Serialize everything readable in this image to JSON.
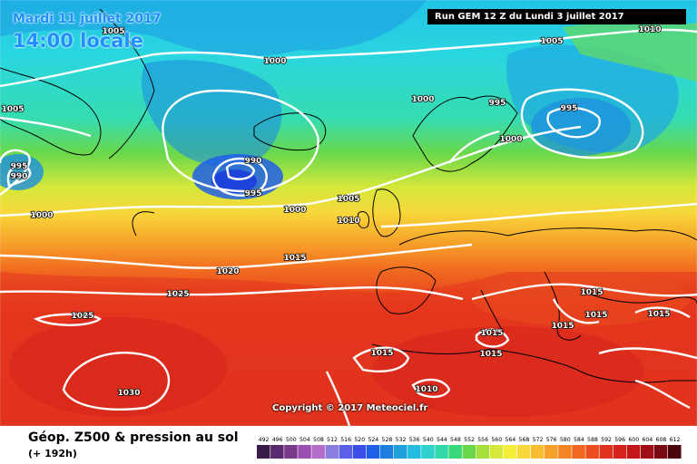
{
  "header": {
    "date": "Mardi 11 juillet 2017",
    "time": "14:00 locale",
    "run": "Run GEM 12 Z du Lundi 3 juillet 2017"
  },
  "copyright": "Copyright © 2017 Meteociel.fr",
  "footer": {
    "title": "Géop. Z500 & pression au sol",
    "lead": "(+ 192h)"
  },
  "legend": {
    "values": [
      492,
      496,
      500,
      504,
      508,
      512,
      516,
      520,
      524,
      528,
      532,
      536,
      540,
      544,
      548,
      552,
      556,
      560,
      564,
      568,
      572,
      576,
      580,
      584,
      588,
      592,
      596,
      600,
      604,
      608,
      612
    ],
    "colors": [
      "#3a1a4a",
      "#5a2a6e",
      "#7a3a8c",
      "#9b4fb0",
      "#b36cc8",
      "#8a7fe0",
      "#5b62e8",
      "#3a4fe8",
      "#1e5fe8",
      "#1c7fe0",
      "#1fa0dc",
      "#22bde0",
      "#30d0cf",
      "#33d9a8",
      "#39d97a",
      "#6ad84a",
      "#a6de3a",
      "#d6e83a",
      "#f2ee3a",
      "#f8d73a",
      "#f8bd30",
      "#f7a12a",
      "#f48424",
      "#f0671f",
      "#ea4d1e",
      "#e0331d",
      "#d4221c",
      "#c2161a",
      "#9e0f16",
      "#7a0a12",
      "#4a060a"
    ]
  },
  "isobar_labels": [
    "1005",
    "1005",
    "1000",
    "1005",
    "1010",
    "1000",
    "995",
    "995",
    "1000",
    "995",
    "990",
    "990",
    "995",
    "1000",
    "1000",
    "1005",
    "1010",
    "1015",
    "1020",
    "1025",
    "1025",
    "1030",
    "1015",
    "1015",
    "1015",
    "1015",
    "1015",
    "1015",
    "1015",
    "1010"
  ]
}
